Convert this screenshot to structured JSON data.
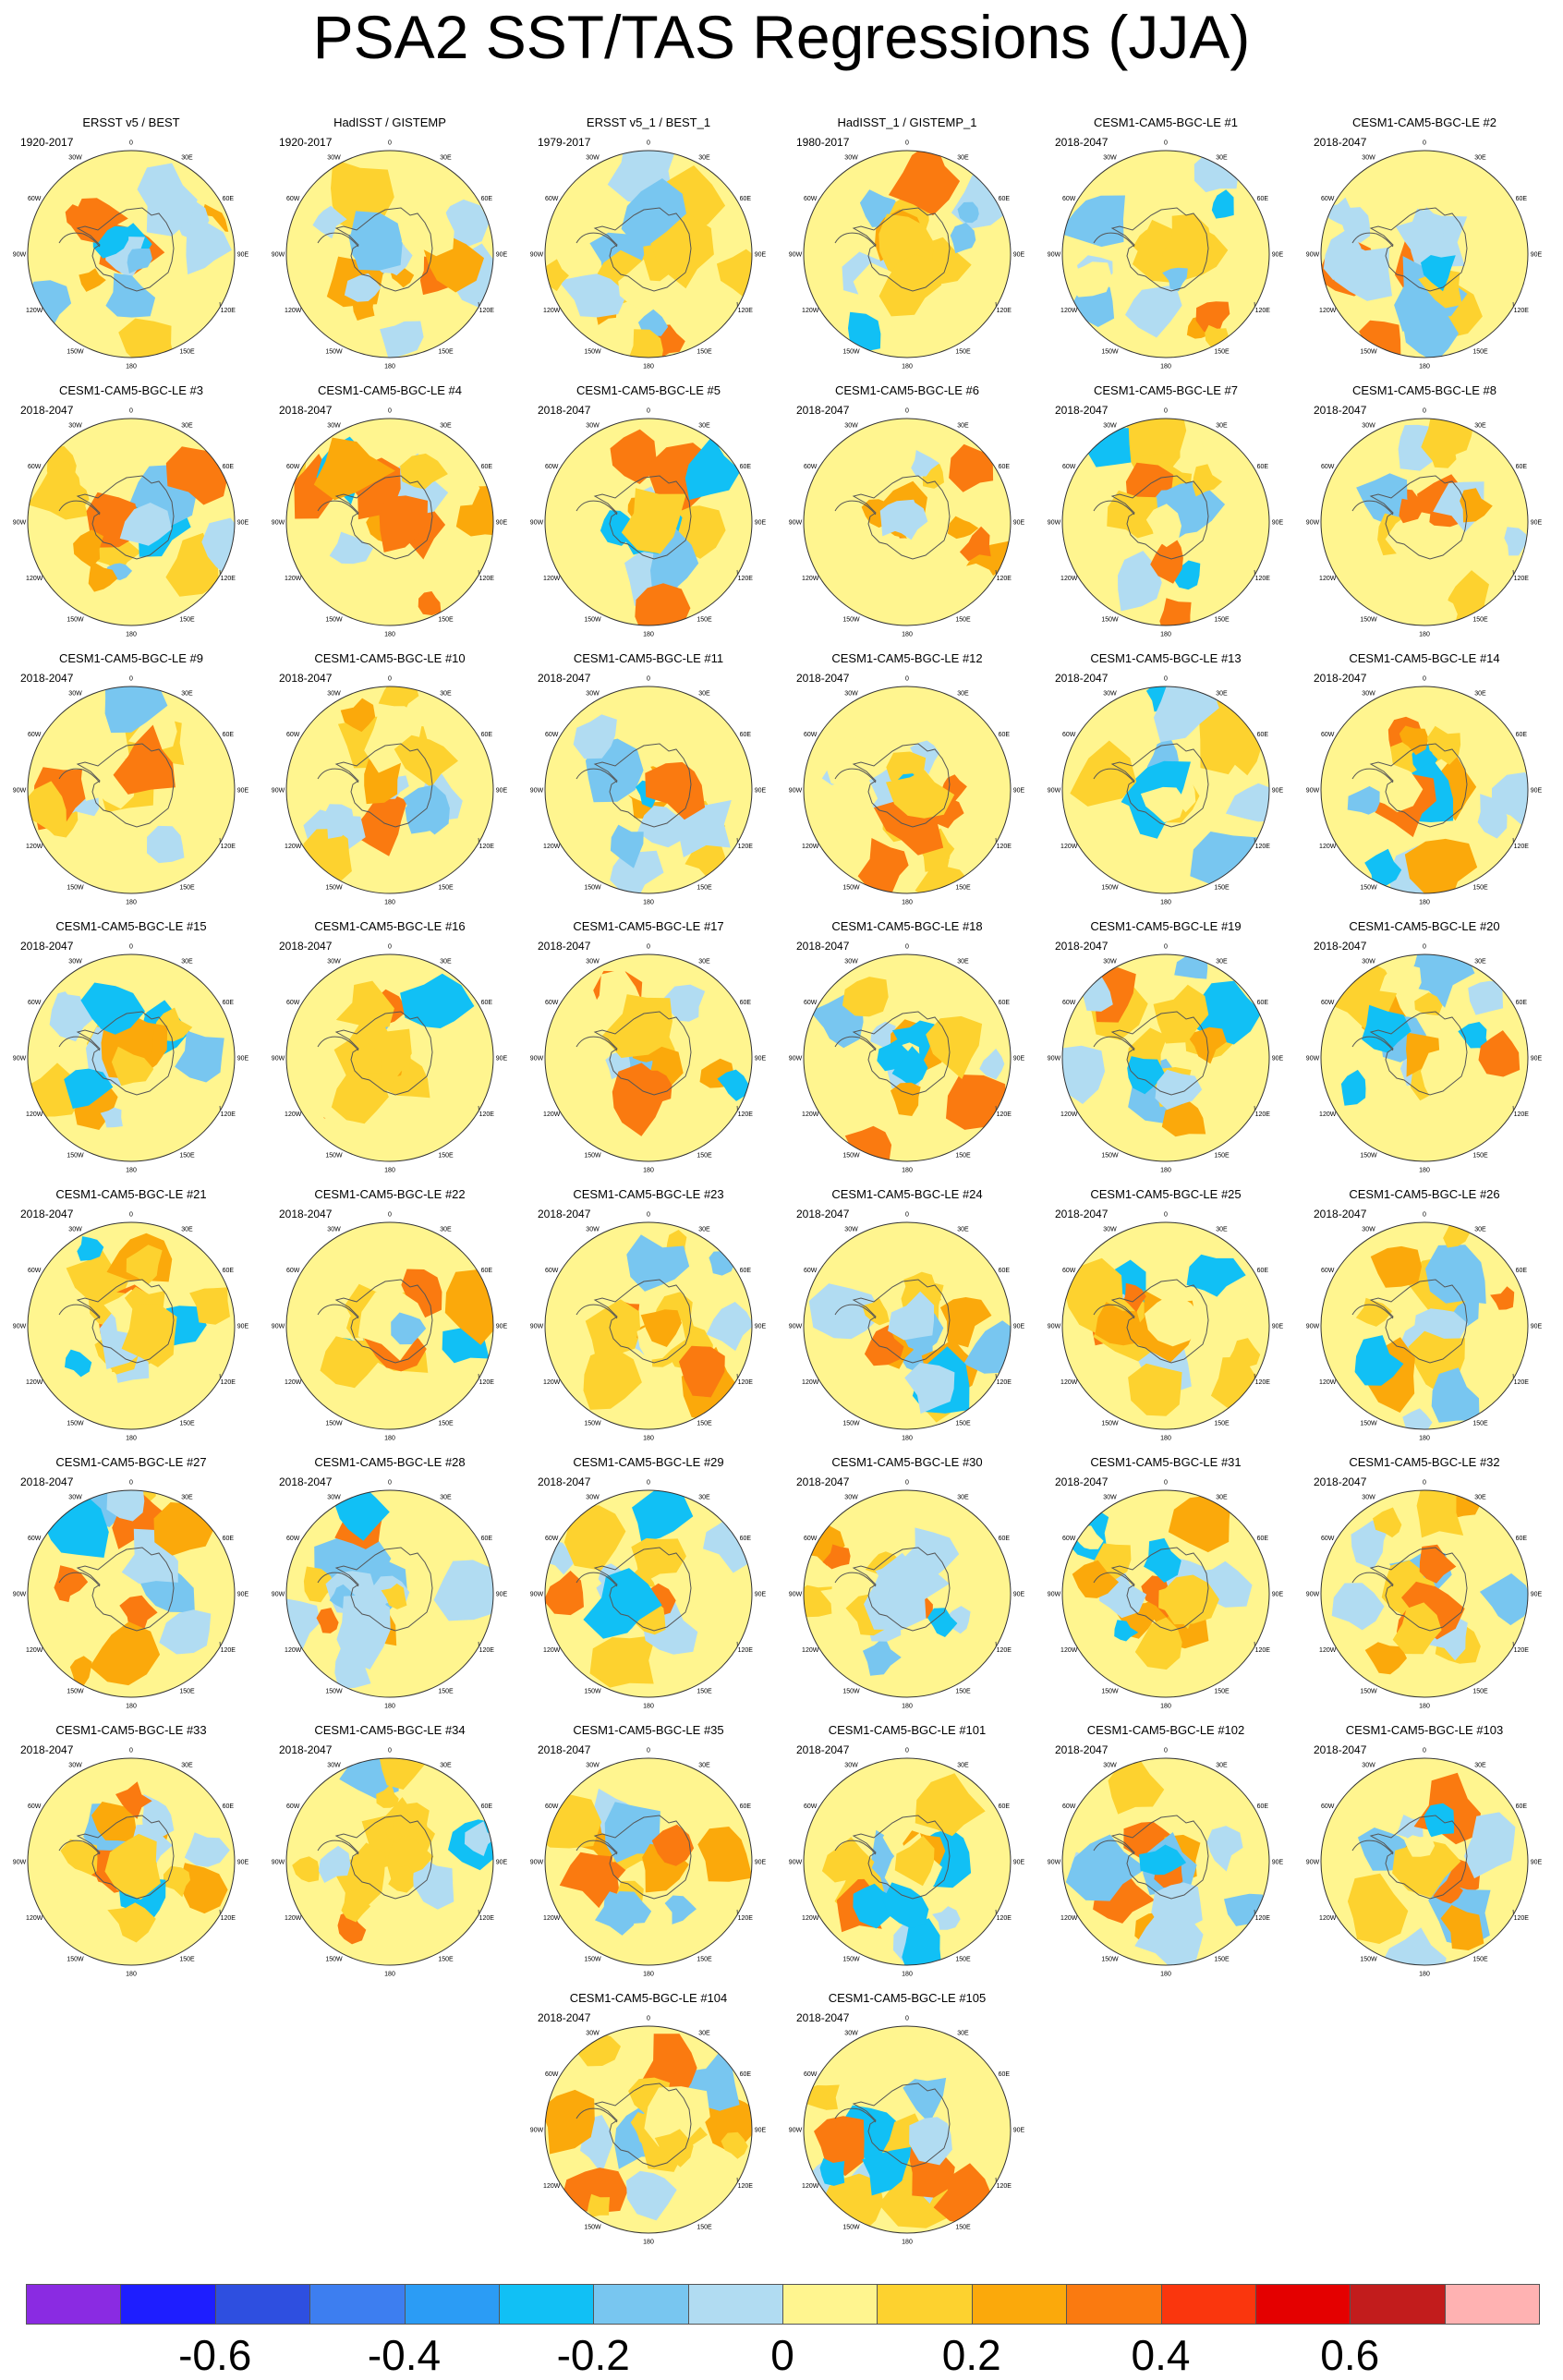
{
  "title": "PSA2 SST/TAS Regressions (JJA)",
  "panels": [
    {
      "title": "ERSST v5 / BEST",
      "period": "1920-2017"
    },
    {
      "title": "HadISST / GISTEMP",
      "period": "1920-2017"
    },
    {
      "title": "ERSST v5_1 / BEST_1",
      "period": "1979-2017"
    },
    {
      "title": "HadISST_1 / GISTEMP_1",
      "period": "1980-2017"
    },
    {
      "title": "CESM1-CAM5-BGC-LE #1",
      "period": "2018-2047"
    },
    {
      "title": "CESM1-CAM5-BGC-LE #2",
      "period": "2018-2047"
    },
    {
      "title": "CESM1-CAM5-BGC-LE #3",
      "period": "2018-2047"
    },
    {
      "title": "CESM1-CAM5-BGC-LE #4",
      "period": "2018-2047"
    },
    {
      "title": "CESM1-CAM5-BGC-LE #5",
      "period": "2018-2047"
    },
    {
      "title": "CESM1-CAM5-BGC-LE #6",
      "period": "2018-2047"
    },
    {
      "title": "CESM1-CAM5-BGC-LE #7",
      "period": "2018-2047"
    },
    {
      "title": "CESM1-CAM5-BGC-LE #8",
      "period": "2018-2047"
    },
    {
      "title": "CESM1-CAM5-BGC-LE #9",
      "period": "2018-2047"
    },
    {
      "title": "CESM1-CAM5-BGC-LE #10",
      "period": "2018-2047"
    },
    {
      "title": "CESM1-CAM5-BGC-LE #11",
      "period": "2018-2047"
    },
    {
      "title": "CESM1-CAM5-BGC-LE #12",
      "period": "2018-2047"
    },
    {
      "title": "CESM1-CAM5-BGC-LE #13",
      "period": "2018-2047"
    },
    {
      "title": "CESM1-CAM5-BGC-LE #14",
      "period": "2018-2047"
    },
    {
      "title": "CESM1-CAM5-BGC-LE #15",
      "period": "2018-2047"
    },
    {
      "title": "CESM1-CAM5-BGC-LE #16",
      "period": "2018-2047"
    },
    {
      "title": "CESM1-CAM5-BGC-LE #17",
      "period": "2018-2047"
    },
    {
      "title": "CESM1-CAM5-BGC-LE #18",
      "period": "2018-2047"
    },
    {
      "title": "CESM1-CAM5-BGC-LE #19",
      "period": "2018-2047"
    },
    {
      "title": "CESM1-CAM5-BGC-LE #20",
      "period": "2018-2047"
    },
    {
      "title": "CESM1-CAM5-BGC-LE #21",
      "period": "2018-2047"
    },
    {
      "title": "CESM1-CAM5-BGC-LE #22",
      "period": "2018-2047"
    },
    {
      "title": "CESM1-CAM5-BGC-LE #23",
      "period": "2018-2047"
    },
    {
      "title": "CESM1-CAM5-BGC-LE #24",
      "period": "2018-2047"
    },
    {
      "title": "CESM1-CAM5-BGC-LE #25",
      "period": "2018-2047"
    },
    {
      "title": "CESM1-CAM5-BGC-LE #26",
      "period": "2018-2047"
    },
    {
      "title": "CESM1-CAM5-BGC-LE #27",
      "period": "2018-2047"
    },
    {
      "title": "CESM1-CAM5-BGC-LE #28",
      "period": "2018-2047"
    },
    {
      "title": "CESM1-CAM5-BGC-LE #29",
      "period": "2018-2047"
    },
    {
      "title": "CESM1-CAM5-BGC-LE #30",
      "period": "2018-2047"
    },
    {
      "title": "CESM1-CAM5-BGC-LE #31",
      "period": "2018-2047"
    },
    {
      "title": "CESM1-CAM5-BGC-LE #32",
      "period": "2018-2047"
    },
    {
      "title": "CESM1-CAM5-BGC-LE #33",
      "period": "2018-2047"
    },
    {
      "title": "CESM1-CAM5-BGC-LE #34",
      "period": "2018-2047"
    },
    {
      "title": "CESM1-CAM5-BGC-LE #35",
      "period": "2018-2047"
    },
    {
      "title": "CESM1-CAM5-BGC-LE #101",
      "period": "2018-2047"
    },
    {
      "title": "CESM1-CAM5-BGC-LE #102",
      "period": "2018-2047"
    },
    {
      "title": "CESM1-CAM5-BGC-LE #103",
      "period": "2018-2047"
    },
    {
      "title": "CESM1-CAM5-BGC-LE #104",
      "period": "2018-2047"
    },
    {
      "title": "CESM1-CAM5-BGC-LE #105",
      "period": "2018-2047"
    }
  ],
  "longitude_labels": [
    "0",
    "30E",
    "60E",
    "90E",
    "120E",
    "150E",
    "180",
    "150W",
    "120W",
    "90W",
    "60W",
    "30W"
  ],
  "colorbar": {
    "colors": [
      "#8a2be2",
      "#1e1eff",
      "#2e4fe0",
      "#3d7ef0",
      "#2b9cf5",
      "#11c0f5",
      "#78c6f0",
      "#b1dcf2",
      "#fff58f",
      "#fdd22f",
      "#fba90b",
      "#fa7a10",
      "#fa360d",
      "#e40000",
      "#c21c1c",
      "#ffb2b2"
    ],
    "tick_labels": [
      "-0.6",
      "-0.4",
      "-0.2",
      "0",
      "0.2",
      "0.4",
      "0.6"
    ]
  }
}
